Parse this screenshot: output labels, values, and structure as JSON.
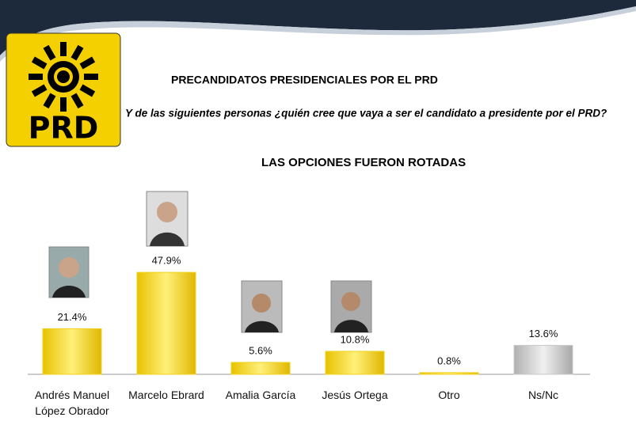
{
  "header": {
    "logo": "PRD"
  },
  "chart_data": {
    "type": "bar",
    "title": "PRECANDIDATOS PRESIDENCIALES POR EL PRD",
    "subtitle": "Y de las siguientes personas ¿quién cree que vaya a ser el candidato a presidente por el PRD?",
    "annotation": "LAS OPCIONES FUERON ROTADAS",
    "categories": [
      "Andrés Manuel López Obrador",
      "Marcelo Ebrard",
      "Amalia García",
      "Jesús Ortega",
      "Otro",
      "Ns/Nc"
    ],
    "values": [
      21.4,
      47.9,
      5.6,
      10.8,
      0.8,
      13.6
    ],
    "value_labels": [
      "21.4%",
      "47.9%",
      "5.6%",
      "10.8%",
      "0.8%",
      "13.6%"
    ],
    "colors": [
      "#f2d21b",
      "#f2d21b",
      "#f2d21b",
      "#f2d21b",
      "#f2d21b",
      "#c8c8c8"
    ]
  }
}
